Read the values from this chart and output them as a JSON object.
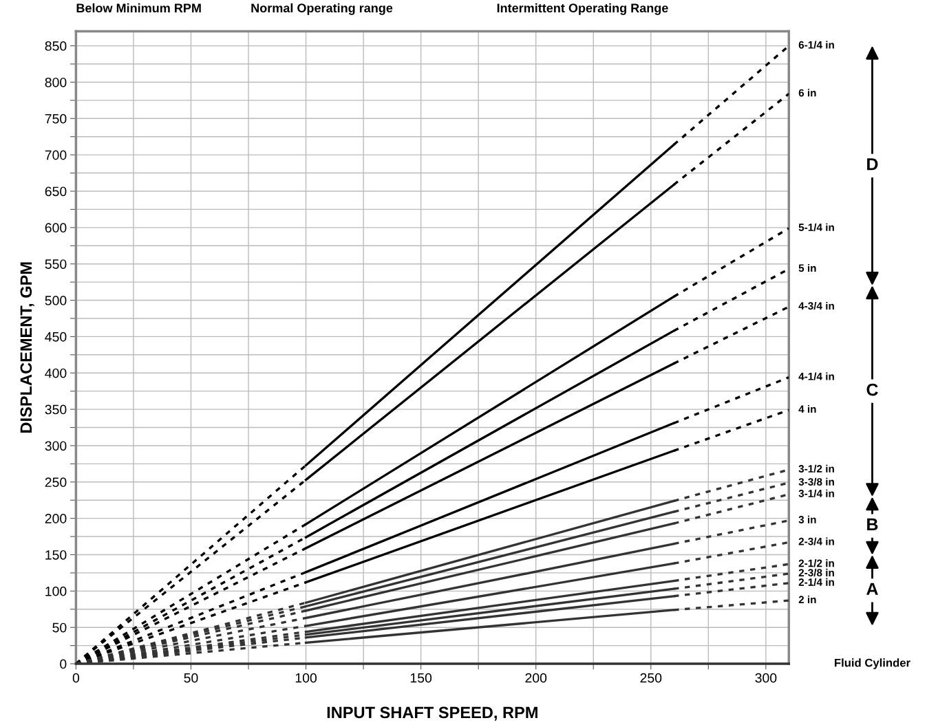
{
  "chart_data": {
    "type": "line",
    "xlabel": "INPUT SHAFT SPEED, RPM",
    "ylabel": "DISPLACEMENT, GPM",
    "xlim": [
      0,
      310
    ],
    "ylim": [
      0,
      870
    ],
    "xticks": [
      0,
      {
        "value": 25,
        "label": null
      },
      50,
      {
        "value": 75,
        "label": null
      },
      100,
      {
        "value": 125,
        "label": null
      },
      150,
      {
        "value": 175,
        "label": null
      },
      200,
      {
        "value": 225,
        "label": null
      },
      250,
      {
        "value": 275,
        "label": null
      },
      300
    ],
    "yticks": [
      0,
      {
        "value": 25,
        "label": null
      },
      50,
      {
        "value": 75,
        "label": null
      },
      100,
      {
        "value": 125,
        "label": null
      },
      150,
      {
        "value": 175,
        "label": null
      },
      200,
      {
        "value": 225,
        "label": null
      },
      250,
      {
        "value": 275,
        "label": null
      },
      300,
      {
        "value": 325,
        "label": null
      },
      350,
      {
        "value": 375,
        "label": null
      },
      400,
      {
        "value": 425,
        "label": null
      },
      450,
      {
        "value": 475,
        "label": null
      },
      500,
      {
        "value": 525,
        "label": null
      },
      550,
      {
        "value": 575,
        "label": null
      },
      600,
      {
        "value": 625,
        "label": null
      },
      650,
      {
        "value": 675,
        "label": null
      },
      700,
      {
        "value": 725,
        "label": null
      },
      750,
      {
        "value": 775,
        "label": null
      },
      800,
      {
        "value": 825,
        "label": null
      },
      850
    ],
    "grid": true,
    "marker": "none",
    "series": [
      {
        "color": "#000000",
        "line_style": "dashed",
        "x": [
          0,
          100
        ],
        "values": [
          0,
          273
        ]
      },
      {
        "color": "#000000",
        "line_style": "solid",
        "x": [
          100,
          260
        ],
        "values": [
          273,
          714
        ]
      },
      {
        "name": "6-1/4 in",
        "color": "#000000",
        "line_style": "dashed",
        "x": [
          260,
          310
        ],
        "values": [
          714,
          850
        ]
      },
      {
        "color": "#000000",
        "line_style": "dashed",
        "x": [
          0,
          100
        ],
        "values": [
          0,
          253
        ]
      },
      {
        "color": "#000000",
        "line_style": "solid",
        "x": [
          100,
          260
        ],
        "values": [
          253,
          659
        ]
      },
      {
        "name": "6 in",
        "color": "#000000",
        "line_style": "dashed",
        "x": [
          260,
          310
        ],
        "values": [
          659,
          784
        ]
      },
      {
        "color": "#000000",
        "line_style": "dashed",
        "x": [
          0,
          100
        ],
        "values": [
          0,
          192
        ]
      },
      {
        "color": "#000000",
        "line_style": "solid",
        "x": [
          100,
          260
        ],
        "values": [
          192,
          505
        ]
      },
      {
        "name": "5-1/4 in",
        "color": "#000000",
        "line_style": "dashed",
        "x": [
          260,
          310
        ],
        "values": [
          505,
          599
        ]
      },
      {
        "color": "#000000",
        "line_style": "dashed",
        "x": [
          0,
          100
        ],
        "values": [
          0,
          174
        ]
      },
      {
        "color": "#000000",
        "line_style": "solid",
        "x": [
          100,
          260
        ],
        "values": [
          174,
          458
        ]
      },
      {
        "name": "5 in",
        "color": "#000000",
        "line_style": "dashed",
        "x": [
          260,
          310
        ],
        "values": [
          458,
          543
        ]
      },
      {
        "color": "#000000",
        "line_style": "dashed",
        "x": [
          0,
          100
        ],
        "values": [
          0,
          159
        ]
      },
      {
        "color": "#000000",
        "line_style": "solid",
        "x": [
          100,
          260
        ],
        "values": [
          159,
          413
        ]
      },
      {
        "name": "4-3/4 in",
        "color": "#000000",
        "line_style": "dashed",
        "x": [
          260,
          310
        ],
        "values": [
          413,
          491
        ]
      },
      {
        "color": "#000000",
        "line_style": "dashed",
        "x": [
          0,
          100
        ],
        "values": [
          0,
          126
        ]
      },
      {
        "color": "#000000",
        "line_style": "solid",
        "x": [
          100,
          260
        ],
        "values": [
          126,
          331
        ]
      },
      {
        "name": "4-1/4 in",
        "color": "#000000",
        "line_style": "dashed",
        "x": [
          260,
          310
        ],
        "values": [
          331,
          394
        ]
      },
      {
        "color": "#000000",
        "line_style": "dashed",
        "x": [
          0,
          100
        ],
        "values": [
          0,
          112
        ]
      },
      {
        "color": "#000000",
        "line_style": "solid",
        "x": [
          100,
          260
        ],
        "values": [
          112,
          293
        ]
      },
      {
        "name": "4 in",
        "color": "#000000",
        "line_style": "dashed",
        "x": [
          260,
          310
        ],
        "values": [
          293,
          349
        ]
      },
      {
        "color": "#333333",
        "line_style": "dashed",
        "x": [
          0,
          100
        ],
        "values": [
          0,
          84
        ]
      },
      {
        "color": "#333333",
        "line_style": "solid",
        "x": [
          100,
          260
        ],
        "values": [
          84,
          224
        ]
      },
      {
        "name": "3-1/2 in",
        "color": "#333333",
        "line_style": "dashed",
        "x": [
          260,
          310
        ],
        "values": [
          224,
          267
        ]
      },
      {
        "color": "#333333",
        "line_style": "dashed",
        "x": [
          0,
          100
        ],
        "values": [
          0,
          79
        ]
      },
      {
        "color": "#333333",
        "line_style": "solid",
        "x": [
          100,
          260
        ],
        "values": [
          79,
          209
        ]
      },
      {
        "name": "3-3/8 in",
        "color": "#333333",
        "line_style": "dashed",
        "x": [
          260,
          310
        ],
        "values": [
          209,
          249
        ]
      },
      {
        "color": "#333333",
        "line_style": "dashed",
        "x": [
          0,
          100
        ],
        "values": [
          0,
          73
        ]
      },
      {
        "color": "#333333",
        "line_style": "solid",
        "x": [
          100,
          260
        ],
        "values": [
          73,
          193
        ]
      },
      {
        "name": "3-1/4 in",
        "color": "#333333",
        "line_style": "dashed",
        "x": [
          260,
          310
        ],
        "values": [
          193,
          233
        ]
      },
      {
        "color": "#333333",
        "line_style": "dashed",
        "x": [
          0,
          100
        ],
        "values": [
          0,
          63
        ]
      },
      {
        "color": "#333333",
        "line_style": "solid",
        "x": [
          100,
          260
        ],
        "values": [
          63,
          165
        ]
      },
      {
        "name": "3 in",
        "color": "#333333",
        "line_style": "dashed",
        "x": [
          260,
          310
        ],
        "values": [
          165,
          197
        ]
      },
      {
        "color": "#333333",
        "line_style": "dashed",
        "x": [
          0,
          100
        ],
        "values": [
          0,
          52
        ]
      },
      {
        "color": "#333333",
        "line_style": "solid",
        "x": [
          100,
          260
        ],
        "values": [
          52,
          138
        ]
      },
      {
        "name": "2-3/4 in",
        "color": "#333333",
        "line_style": "dashed",
        "x": [
          260,
          310
        ],
        "values": [
          138,
          167
        ]
      },
      {
        "color": "#333333",
        "line_style": "dashed",
        "x": [
          0,
          100
        ],
        "values": [
          0,
          44
        ]
      },
      {
        "color": "#333333",
        "line_style": "solid",
        "x": [
          100,
          260
        ],
        "values": [
          44,
          114
        ]
      },
      {
        "name": "2-1/2 in",
        "color": "#333333",
        "line_style": "dashed",
        "x": [
          260,
          310
        ],
        "values": [
          114,
          137
        ]
      },
      {
        "color": "#333333",
        "line_style": "dashed",
        "x": [
          0,
          100
        ],
        "values": [
          0,
          40
        ]
      },
      {
        "color": "#333333",
        "line_style": "solid",
        "x": [
          100,
          260
        ],
        "values": [
          40,
          103
        ]
      },
      {
        "name": "2-3/8 in",
        "color": "#333333",
        "line_style": "dashed",
        "x": [
          260,
          310
        ],
        "values": [
          103,
          124
        ]
      },
      {
        "color": "#333333",
        "line_style": "dashed",
        "x": [
          0,
          100
        ],
        "values": [
          0,
          36
        ]
      },
      {
        "color": "#333333",
        "line_style": "solid",
        "x": [
          100,
          260
        ],
        "values": [
          36,
          93
        ]
      },
      {
        "name": "2-1/4 in",
        "color": "#333333",
        "line_style": "dashed",
        "x": [
          260,
          310
        ],
        "values": [
          93,
          111
        ]
      },
      {
        "color": "#333333",
        "line_style": "dashed",
        "x": [
          0,
          100
        ],
        "values": [
          0,
          29
        ]
      },
      {
        "color": "#333333",
        "line_style": "solid",
        "x": [
          100,
          260
        ],
        "values": [
          29,
          74
        ]
      },
      {
        "name": "2 in",
        "color": "#333333",
        "line_style": "dashed",
        "x": [
          260,
          310
        ],
        "values": [
          74,
          87
        ]
      }
    ],
    "annotations": [
      "Below Minimum RPM",
      "Normal Operating range",
      "Intermittent Operating Range",
      "D",
      "C",
      "B",
      "A",
      "Fluid Cylinder"
    ]
  }
}
